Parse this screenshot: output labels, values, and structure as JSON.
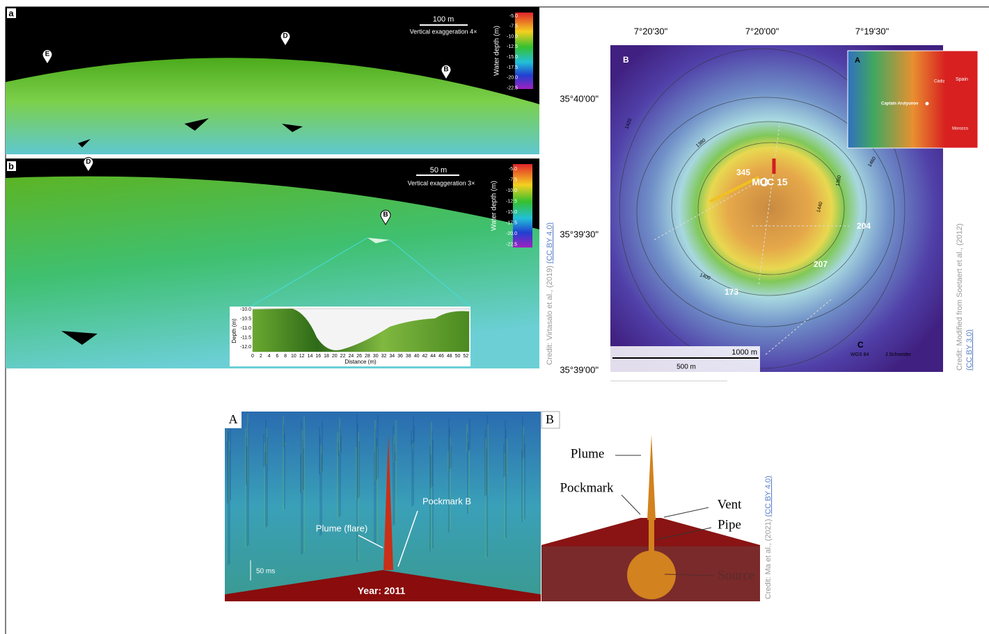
{
  "panel_a": {
    "label": "a",
    "scale": "100 m",
    "exaggeration": "Vertical exaggeration 4×",
    "colorbar_title": "Water depth (m)",
    "colorbar_ticks": [
      "-5.0",
      "-7.5",
      "-10.0",
      "-12.5",
      "-15.0",
      "-17.5",
      "-20.0",
      "-22.5"
    ],
    "markers": [
      "E",
      "D",
      "B"
    ]
  },
  "panel_b": {
    "label": "b",
    "scale": "50 m",
    "exaggeration": "Vertical exaggeration 3×",
    "colorbar_title": "Water depth (m)",
    "colorbar_ticks": [
      "-5.0",
      "-7.5",
      "-10.0",
      "-12.5",
      "-15.0",
      "-17.5",
      "-20.0",
      "-22.5"
    ],
    "markers": [
      "D",
      "B"
    ],
    "profile": {
      "y_label": "Depth (m)",
      "x_label": "Distance (m)",
      "y_ticks": [
        "-10.0",
        "-10.5",
        "-11.0",
        "-11.5",
        "-12.0"
      ],
      "x_ticks": [
        "0",
        "2",
        "4",
        "6",
        "8",
        "10",
        "12",
        "14",
        "16",
        "18",
        "20",
        "22",
        "24",
        "26",
        "28",
        "30",
        "32",
        "34",
        "36",
        "38",
        "40",
        "42",
        "44",
        "46",
        "48",
        "50",
        "52"
      ]
    }
  },
  "credit_left": {
    "text": "Credit: Virtasalo et al., (2019) ",
    "license": "(CC BY 4.0)"
  },
  "map": {
    "label": "B",
    "lon_labels": [
      "7°20'30\"",
      "7°20'00\"",
      "7°19'30\""
    ],
    "lat_labels": [
      "35°40'00\"",
      "35°39'30\"",
      "35°39'00\""
    ],
    "site_labels": [
      "345",
      "MUC 15",
      "204",
      "207",
      "173"
    ],
    "contours": [
      "1420",
      "1380",
      "1360",
      "1400",
      "1440",
      "1460"
    ],
    "corner_label": "C",
    "datum": "WGS 84",
    "author": "J.Schneider",
    "scale_long": "1000 m",
    "scale_short": "500 m",
    "inset": {
      "label": "A",
      "places": [
        "Spain",
        "Cádiz",
        "Captain Arutyunov",
        "Morocco"
      ]
    }
  },
  "credit_right": {
    "text": "Credit: Modified from Soetaert et al., (2012)",
    "license": "(CC BY 3.0)"
  },
  "echogram": {
    "label": "A",
    "plume": "Plume (flare)",
    "pockmark": "Pockmark B",
    "scale": "50 ms",
    "year": "Year: 2011"
  },
  "schematic": {
    "label": "B",
    "plume": "Plume",
    "pockmark": "Pockmark",
    "vent": "Vent",
    "pipe": "Pipe",
    "source": "Source"
  },
  "credit_bottom": {
    "text": "Credit: Ma et al., (2021) ",
    "license": "(CC BY 4.0)"
  }
}
